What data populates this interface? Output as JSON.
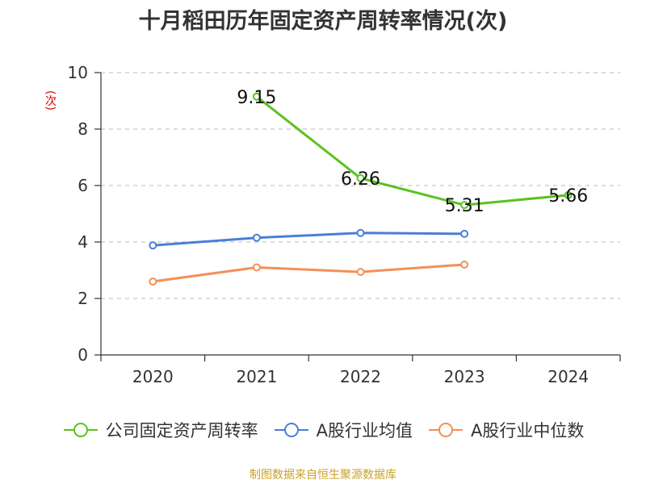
{
  "chart_data": {
    "type": "line",
    "title": "十月稻田历年固定资产周转率情况(次)",
    "ylabel": "(次)",
    "categories": [
      "2020",
      "2021",
      "2022",
      "2023",
      "2024"
    ],
    "ylim": [
      0,
      10
    ],
    "yticks": [
      0,
      2,
      4,
      6,
      8,
      10
    ],
    "grid": true,
    "legend_position": "bottom",
    "series": [
      {
        "name": "公司固定资产周转率",
        "color": "#5ac21f",
        "values": [
          null,
          9.15,
          6.26,
          5.31,
          5.66
        ],
        "labels": true
      },
      {
        "name": "A股行业均值",
        "color": "#4a7fd6",
        "values": [
          3.88,
          4.15,
          4.32,
          4.29,
          null
        ],
        "labels": false
      },
      {
        "name": "A股行业中位数",
        "color": "#f39055",
        "values": [
          2.6,
          3.1,
          2.94,
          3.2,
          null
        ],
        "labels": false
      }
    ]
  },
  "source": "制图数据来自恒生聚源数据库"
}
